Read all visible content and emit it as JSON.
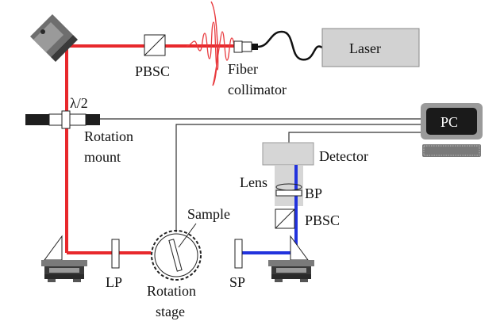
{
  "labels": {
    "laser": "Laser",
    "pbsc_top": "PBSC",
    "fiber_collimator_line1": "Fiber",
    "fiber_collimator_line2": "collimator",
    "half_wave_plate": "λ/2",
    "rotation_mount_line1": "Rotation",
    "rotation_mount_line2": "mount",
    "pc": "PC",
    "detector": "Detector",
    "lens": "Lens",
    "bp": "BP",
    "pbsc_right": "PBSC",
    "sample": "Sample",
    "lp": "LP",
    "rotation_stage_line1": "Rotation",
    "rotation_stage_line2": "stage",
    "sp": "SP"
  },
  "colors": {
    "red_beam": "#e8282c",
    "blue_beam": "#2233dd",
    "laser_box": "#d2d2d2",
    "detector_box": "#d6d6d6",
    "pc_screen": "#1a1a1a",
    "lens_tube": "#cfcfcf"
  }
}
